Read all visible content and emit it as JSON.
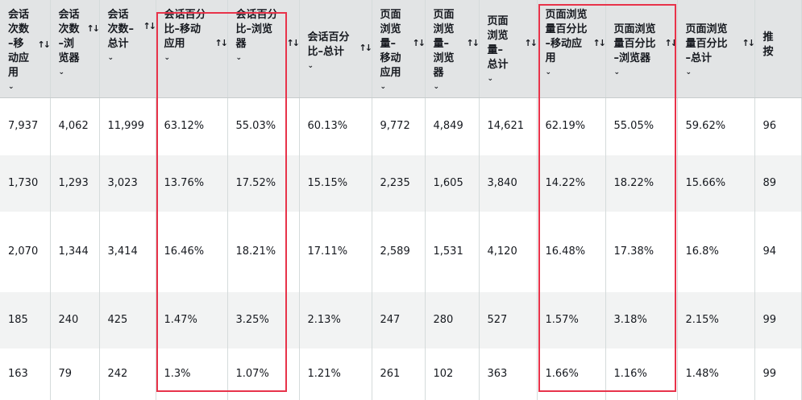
{
  "table": {
    "columns": [
      {
        "label": "会话\n次数\n–移\n动应\n用",
        "sort_icon": "sort-icon"
      },
      {
        "label": "会话\n次数\n–浏\n览器",
        "sort_icon": "sort-icon"
      },
      {
        "label": "会话\n次数–\n总计",
        "sort_icon": "sort-icon"
      },
      {
        "label": "会话百分\n比–移动\n应用",
        "sort_icon": "sort-icon"
      },
      {
        "label": "会话百分\n比–浏览\n器",
        "sort_icon": "sort-icon"
      },
      {
        "label": "会话百分\n比–总计",
        "sort_icon": "sort-icon"
      },
      {
        "label": "页面\n浏览\n量–\n移动\n应用",
        "sort_icon": "sort-icon"
      },
      {
        "label": "页面\n浏览\n量–\n浏览\n器",
        "sort_icon": "sort-icon"
      },
      {
        "label": "页面\n浏览\n量–\n总计",
        "sort_icon": "sort-icon"
      },
      {
        "label": "页面浏览\n量百分比\n–移动应\n用",
        "sort_icon": "sort-icon"
      },
      {
        "label": "页面浏览\n量百分比\n–浏览器",
        "sort_icon": "sort-icon"
      },
      {
        "label": "页面浏览\n量百分比\n–总计",
        "sort_icon": "sort-icon"
      },
      {
        "label": "推\n按",
        "sort_icon": "sort-icon"
      }
    ],
    "rows": [
      [
        "7,937",
        "4,062",
        "11,999",
        "63.12%",
        "55.03%",
        "60.13%",
        "9,772",
        "4,849",
        "14,621",
        "62.19%",
        "55.05%",
        "59.62%",
        "96"
      ],
      [
        "1,730",
        "1,293",
        "3,023",
        "13.76%",
        "17.52%",
        "15.15%",
        "2,235",
        "1,605",
        "3,840",
        "14.22%",
        "18.22%",
        "15.66%",
        "89"
      ],
      [
        "2,070",
        "1,344",
        "3,414",
        "16.46%",
        "18.21%",
        "17.11%",
        "2,589",
        "1,531",
        "4,120",
        "16.48%",
        "17.38%",
        "16.8%",
        "94"
      ],
      [
        "185",
        "240",
        "425",
        "1.47%",
        "3.25%",
        "2.13%",
        "247",
        "280",
        "527",
        "1.57%",
        "3.18%",
        "2.15%",
        "99"
      ],
      [
        "163",
        "79",
        "242",
        "1.3%",
        "1.07%",
        "1.21%",
        "261",
        "102",
        "363",
        "1.66%",
        "1.16%",
        "1.48%",
        "99"
      ]
    ]
  },
  "sort_glyph": "↑↓",
  "caret_glyph": "⌄",
  "colors": {
    "header_bg": "#e2e4e5",
    "row_alt_bg": "#f2f3f3",
    "highlight": "#e8334a"
  }
}
